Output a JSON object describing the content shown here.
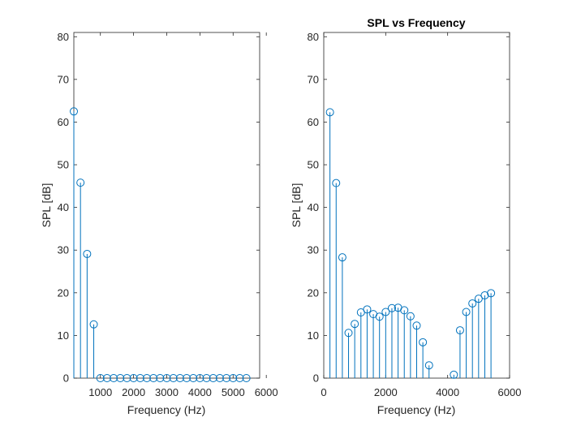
{
  "chart_data": [
    {
      "type": "stem",
      "title": "",
      "xlabel": "Frequency (Hz)",
      "ylabel": "SPL [dB]",
      "xlim": [
        200,
        5800
      ],
      "ylim": [
        0,
        81
      ],
      "xticks": [
        1000,
        2000,
        3000,
        4000,
        5000,
        6000
      ],
      "yticks": [
        0,
        10,
        20,
        30,
        40,
        50,
        60,
        70,
        80
      ],
      "grid": false,
      "series": [
        {
          "x": [
            200,
            400,
            600,
            800,
            1000,
            1200,
            1400,
            1600,
            1800,
            2000,
            2200,
            2400,
            2600,
            2800,
            3000,
            3200,
            3400,
            3600,
            3800,
            4000,
            4200,
            4400,
            4600,
            4800,
            5000,
            5200,
            5400
          ],
          "values": [
            62.5,
            45.8,
            29.1,
            12.6,
            0,
            0,
            0,
            0,
            0,
            0,
            0,
            0,
            0,
            0,
            0,
            0,
            0,
            0,
            0,
            0,
            0,
            0,
            0,
            0,
            0,
            0,
            0
          ],
          "color": "#0072BD"
        }
      ]
    },
    {
      "type": "stem",
      "title": "SPL vs Frequency",
      "xlabel": "Frequency (Hz)",
      "ylabel": "SPL [dB]",
      "xlim": [
        0,
        6000
      ],
      "ylim": [
        0,
        81
      ],
      "xticks": [
        0,
        2000,
        4000,
        6000
      ],
      "yticks": [
        0,
        10,
        20,
        30,
        40,
        50,
        60,
        70,
        80
      ],
      "grid": false,
      "series": [
        {
          "x": [
            200,
            400,
            600,
            800,
            1000,
            1200,
            1400,
            1600,
            1800,
            2000,
            2200,
            2400,
            2600,
            2800,
            3000,
            3200,
            3400,
            4200,
            4400,
            4600,
            4800,
            5000,
            5200,
            5400
          ],
          "values": [
            62.3,
            45.7,
            28.3,
            10.6,
            12.7,
            15.4,
            16.1,
            15.0,
            14.4,
            15.5,
            16.4,
            16.5,
            15.9,
            14.5,
            12.3,
            8.4,
            3.0,
            0.8,
            11.2,
            15.5,
            17.5,
            18.6,
            19.4,
            19.9
          ],
          "color": "#0072BD"
        }
      ]
    }
  ]
}
